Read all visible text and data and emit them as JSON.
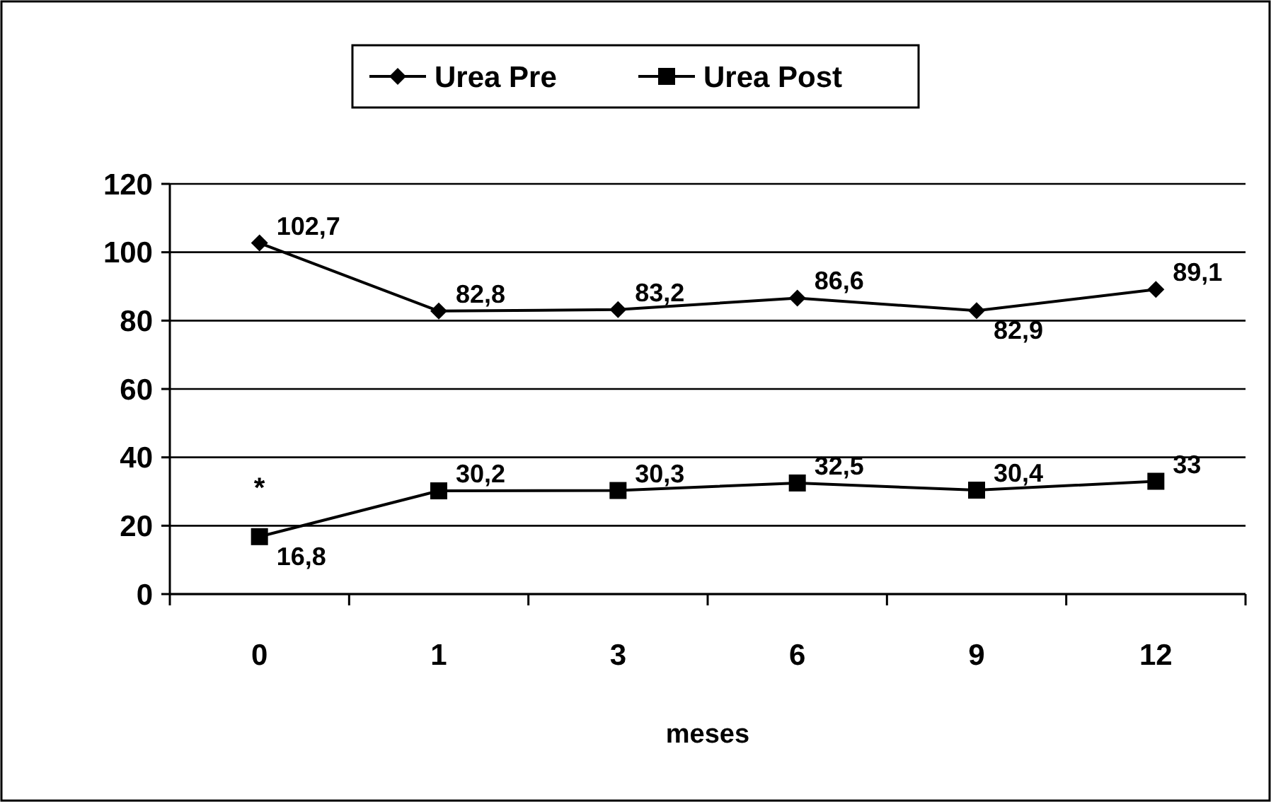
{
  "chart_data": {
    "type": "line",
    "xlabel": "meses",
    "categories": [
      "0",
      "1",
      "3",
      "6",
      "9",
      "12"
    ],
    "ylim": [
      0,
      120
    ],
    "yticks": [
      0,
      20,
      40,
      60,
      80,
      100,
      120
    ],
    "grid": "y",
    "legend": "top",
    "series": [
      {
        "name": "Urea Pre",
        "color": "#000000",
        "marker": "diamond",
        "values": [
          102.7,
          82.8,
          83.2,
          86.6,
          82.9,
          89.1
        ],
        "value_labels": [
          "102,7",
          "82,8",
          "83,2",
          "86,6",
          "82,9",
          "89,1"
        ]
      },
      {
        "name": "Urea Post",
        "color": "#000000",
        "marker": "square",
        "values": [
          16.8,
          30.2,
          30.3,
          32.5,
          30.4,
          33
        ],
        "value_labels": [
          "16,8",
          "30,2",
          "30,3",
          "32,5",
          "30,4",
          "33"
        ]
      }
    ],
    "annotations": [
      "*"
    ]
  }
}
